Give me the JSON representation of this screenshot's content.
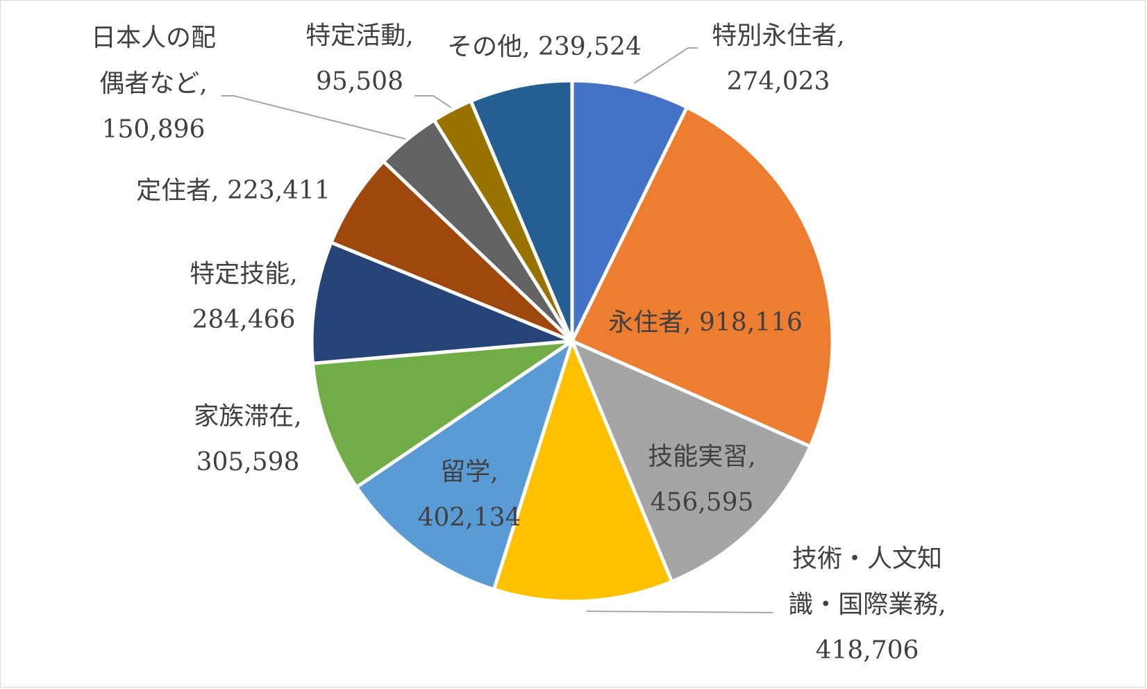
{
  "chart_data": {
    "type": "pie",
    "title": "",
    "legend": "none",
    "colors": [
      "#4472C4",
      "#ED7D31",
      "#A5A5A5",
      "#FFC000",
      "#5B9BD5",
      "#70AD47",
      "#264478",
      "#9E480E",
      "#636363",
      "#997300",
      "#255E91"
    ],
    "slices": [
      {
        "key": "tokubetsu_eijusha",
        "label": "特別永住者",
        "value": 274023,
        "value_text": "274,023",
        "label_lines": [
          "特別永住者,",
          "274,023"
        ]
      },
      {
        "key": "eijusha",
        "label": "永住者",
        "value": 918116,
        "value_text": "918,116",
        "label_lines": [
          "永住者, 918,116"
        ]
      },
      {
        "key": "gino_jisshu",
        "label": "技能実習",
        "value": 456595,
        "value_text": "456,595",
        "label_lines": [
          "技能実習,",
          "456,595"
        ]
      },
      {
        "key": "gijutsu_jinbun",
        "label": "技術・人文知識・国際業務",
        "value": 418706,
        "value_text": "418,706",
        "label_lines": [
          "技術・人文知",
          "識・国際業務,",
          "418,706"
        ]
      },
      {
        "key": "ryugaku",
        "label": "留学",
        "value": 402134,
        "value_text": "402,134",
        "label_lines": [
          "留学,",
          "402,134"
        ]
      },
      {
        "key": "kazoku_taizai",
        "label": "家族滞在",
        "value": 305598,
        "value_text": "305,598",
        "label_lines": [
          "家族滞在,",
          "305,598"
        ]
      },
      {
        "key": "tokutei_gino",
        "label": "特定技能",
        "value": 284466,
        "value_text": "284,466",
        "label_lines": [
          "特定技能,",
          "284,466"
        ]
      },
      {
        "key": "teijusha",
        "label": "定住者",
        "value": 223411,
        "value_text": "223,411",
        "label_lines": [
          "定住者, 223,411"
        ]
      },
      {
        "key": "nihonjin_haigusha",
        "label": "日本人の配偶者など",
        "value": 150896,
        "value_text": "150,896",
        "label_lines": [
          "日本人の配",
          "偶者など,",
          "150,896"
        ]
      },
      {
        "key": "tokutei_katsudo",
        "label": "特定活動",
        "value": 95508,
        "value_text": "95,508",
        "label_lines": [
          "特定活動,",
          "95,508"
        ]
      },
      {
        "key": "sonota",
        "label": "その他",
        "value": 239524,
        "value_text": "239,524",
        "label_lines": [
          "その他, 239,524"
        ]
      }
    ]
  }
}
